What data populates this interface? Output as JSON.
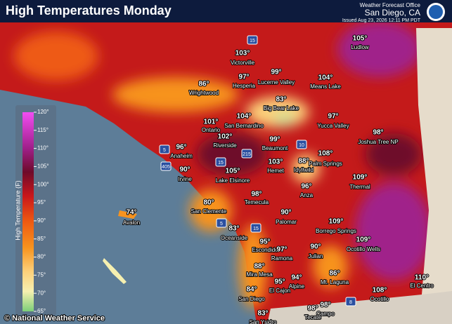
{
  "header": {
    "title": "High Temperatures Monday",
    "office": "Weather Forecast Office",
    "location": "San Diego, CA",
    "issued": "Issued Aug 23, 2026 12:11 PM PDT"
  },
  "legend": {
    "title": "High Temperature (F)",
    "ticks": [
      "120°",
      "115°",
      "110°",
      "105°",
      "100°",
      "95°",
      "90°",
      "85°",
      "80°",
      "75°",
      "70°",
      "65°"
    ]
  },
  "footer": "© National Weather Service",
  "highways": [
    "15",
    "5",
    "405",
    "215",
    "10",
    "15",
    "5",
    "15",
    "8"
  ],
  "cities": [
    {
      "name": "Victorville",
      "temp": "103°"
    },
    {
      "name": "Ludlow",
      "temp": "105°"
    },
    {
      "name": "Hesperia",
      "temp": "97°"
    },
    {
      "name": "Lucerne Valley",
      "temp": "99°"
    },
    {
      "name": "Means Lake",
      "temp": "104°"
    },
    {
      "name": "Wrightwood",
      "temp": "86°"
    },
    {
      "name": "Big Bear Lake",
      "temp": "83°"
    },
    {
      "name": "Ontario",
      "temp": "101°"
    },
    {
      "name": "San Bernardino",
      "temp": "104°"
    },
    {
      "name": "Yucca Valley",
      "temp": "97°"
    },
    {
      "name": "Joshua Tree NP",
      "temp": "98°"
    },
    {
      "name": "Riverside",
      "temp": "102°"
    },
    {
      "name": "Beaumont",
      "temp": "99°"
    },
    {
      "name": "Anaheim",
      "temp": "96°"
    },
    {
      "name": "Palm Springs",
      "temp": "108°"
    },
    {
      "name": "Idyllwild",
      "temp": "88°"
    },
    {
      "name": "Hemet",
      "temp": "103°"
    },
    {
      "name": "Irvine",
      "temp": "90°"
    },
    {
      "name": "Lake Elsinore",
      "temp": "105°"
    },
    {
      "name": "Thermal",
      "temp": "109°"
    },
    {
      "name": "Anza",
      "temp": "96°"
    },
    {
      "name": "Temecula",
      "temp": "98°"
    },
    {
      "name": "San Clemente",
      "temp": "80°"
    },
    {
      "name": "Avalon",
      "temp": "74°"
    },
    {
      "name": "Palomar",
      "temp": "90°"
    },
    {
      "name": "Borrego Springs",
      "temp": "109°"
    },
    {
      "name": "Oceanside",
      "temp": "83°"
    },
    {
      "name": "Ocotillo Wells",
      "temp": "109°"
    },
    {
      "name": "Escondido",
      "temp": "95°"
    },
    {
      "name": "Ramona",
      "temp": "97°"
    },
    {
      "name": "Julian",
      "temp": "90°"
    },
    {
      "name": "Mira Mesa",
      "temp": "88°"
    },
    {
      "name": "Mt. Laguna",
      "temp": "86°"
    },
    {
      "name": "El Cajon",
      "temp": "95°"
    },
    {
      "name": "Alpine",
      "temp": "94°"
    },
    {
      "name": "El Centro",
      "temp": "110°"
    },
    {
      "name": "San Diego",
      "temp": "84°"
    },
    {
      "name": "Ocotillo",
      "temp": "108°"
    },
    {
      "name": "Campo",
      "temp": "98°"
    },
    {
      "name": "Tecate",
      "temp": "98°"
    },
    {
      "name": "San Ysidro",
      "temp": "83°"
    }
  ]
}
